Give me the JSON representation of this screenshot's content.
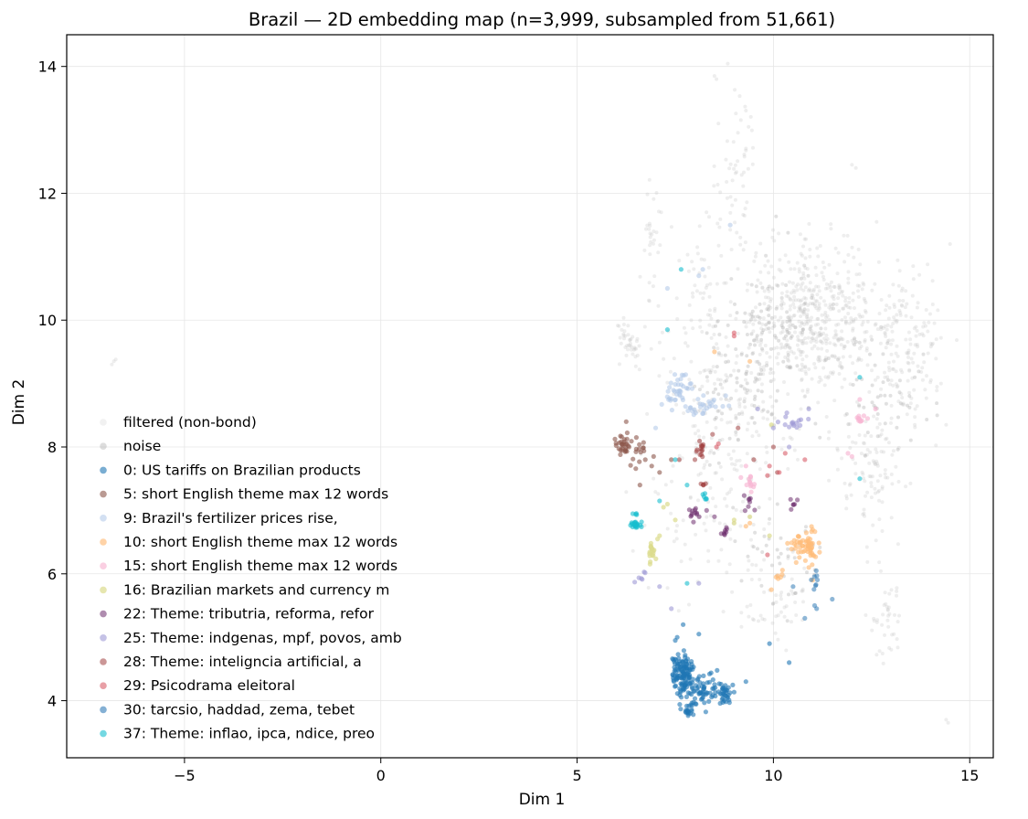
{
  "chart_data": {
    "type": "scatter",
    "title": "Brazil — 2D embedding map (n=3,999, subsampled from 51,661)",
    "xlabel": "Dim 1",
    "ylabel": "Dim 2",
    "xlim": [
      -8.0,
      15.6
    ],
    "ylim": [
      3.1,
      14.5
    ],
    "xticks": [
      -5,
      0,
      5,
      10,
      15
    ],
    "xtick_labels": [
      "−5",
      "0",
      "5",
      "10",
      "15"
    ],
    "yticks": [
      4,
      6,
      8,
      10,
      12,
      14
    ],
    "ytick_labels": [
      "4",
      "6",
      "8",
      "10",
      "12",
      "14"
    ],
    "grid": true,
    "legend_position": "lower-left",
    "series": [
      {
        "name": "filtered (non-bond)",
        "color": "#c8c8c8",
        "opacity": 0.3,
        "clusters": [
          [
            11,
            10.0,
            1.6,
            1.1,
            520
          ],
          [
            8.6,
            8.3,
            1.6,
            2.3,
            260
          ],
          [
            6.3,
            9.6,
            0.35,
            0.35,
            40
          ],
          [
            6.9,
            11.3,
            0.2,
            1.0,
            30
          ],
          [
            13.4,
            9.6,
            0.8,
            1.2,
            150
          ],
          [
            12.6,
            7.5,
            0.8,
            0.9,
            100
          ],
          [
            9.1,
            12.2,
            0.5,
            1.4,
            60
          ],
          [
            10.0,
            5.6,
            1.0,
            0.6,
            50
          ],
          [
            12.8,
            5.4,
            0.4,
            0.6,
            40
          ],
          [
            8.2,
            10.5,
            0.5,
            1.0,
            40
          ]
        ],
        "points": [
          [
            -6.85,
            9.3
          ],
          [
            -6.8,
            9.35
          ],
          [
            -6.75,
            9.38
          ],
          [
            14.4,
            3.7
          ],
          [
            14.45,
            3.65
          ],
          [
            14.5,
            11.2
          ],
          [
            14.4,
            8.35
          ],
          [
            12.0,
            12.45
          ],
          [
            12.1,
            12.4
          ],
          [
            8.5,
            13.85
          ],
          [
            8.55,
            13.8
          ],
          [
            8.6,
            13.1
          ]
        ]
      },
      {
        "name": "noise",
        "color": "#a9a9a9",
        "opacity": 0.35,
        "clusters": [
          [
            10.2,
            9.8,
            1.4,
            1.0,
            110
          ],
          [
            8.9,
            9.0,
            0.9,
            1.0,
            60
          ],
          [
            12.7,
            8.9,
            1.0,
            1.0,
            50
          ],
          [
            10.0,
            6.3,
            1.0,
            0.6,
            40
          ]
        ],
        "points": []
      },
      {
        "name": "0: US tariffs on Brazilian products",
        "color": "#1f77b4",
        "opacity": 0.6,
        "clusters": [
          [
            7.7,
            4.4,
            0.28,
            0.3,
            130
          ],
          [
            8.3,
            4.15,
            0.38,
            0.18,
            60
          ],
          [
            7.85,
            3.85,
            0.22,
            0.08,
            20
          ],
          [
            8.8,
            4.1,
            0.2,
            0.12,
            25
          ]
        ],
        "points": [
          [
            7.5,
            4.95
          ],
          [
            7.55,
            5.0
          ],
          [
            8.1,
            5.05
          ],
          [
            9.3,
            4.3
          ],
          [
            9.9,
            4.9
          ],
          [
            10.4,
            4.6
          ],
          [
            7.7,
            5.2
          ],
          [
            7.45,
            4.65
          ]
        ]
      },
      {
        "name": "5: short English theme max 12 words",
        "color": "#8c564b",
        "opacity": 0.6,
        "clusters": [
          [
            6.2,
            8.05,
            0.18,
            0.12,
            30
          ],
          [
            6.6,
            7.9,
            0.2,
            0.18,
            15
          ]
        ],
        "points": [
          [
            6.9,
            7.7
          ],
          [
            7.1,
            7.6
          ],
          [
            6.6,
            7.4
          ],
          [
            7.4,
            7.8
          ],
          [
            6.95,
            7.85
          ],
          [
            6.25,
            8.4
          ]
        ]
      },
      {
        "name": "9: Brazil's fertilizer prices rise,",
        "color": "#aec7e8",
        "opacity": 0.55,
        "clusters": [
          [
            7.5,
            8.85,
            0.4,
            0.25,
            40
          ],
          [
            8.3,
            8.65,
            0.5,
            0.2,
            25
          ]
        ],
        "points": [
          [
            8.9,
            11.5
          ],
          [
            8.1,
            10.7
          ],
          [
            7.3,
            10.5
          ],
          [
            8.2,
            10.8
          ],
          [
            7.9,
            9.0
          ],
          [
            7.0,
            8.3
          ]
        ]
      },
      {
        "name": "10: short English theme max 12 words",
        "color": "#ffbb78",
        "opacity": 0.65,
        "clusters": [
          [
            10.9,
            6.4,
            0.3,
            0.22,
            45
          ],
          [
            10.6,
            6.5,
            0.25,
            0.1,
            15
          ],
          [
            10.15,
            6.0,
            0.1,
            0.1,
            6
          ]
        ],
        "points": [
          [
            9.95,
            5.75
          ],
          [
            9.4,
            6.8
          ],
          [
            9.3,
            6.75
          ],
          [
            8.5,
            9.5
          ],
          [
            9.4,
            9.35
          ],
          [
            10.9,
            6.1
          ],
          [
            11.0,
            5.9
          ]
        ]
      },
      {
        "name": "15: short English theme max 12 words",
        "color": "#f7b6d2",
        "opacity": 0.65,
        "clusters": [
          [
            12.2,
            8.45,
            0.1,
            0.06,
            10
          ],
          [
            9.4,
            7.45,
            0.15,
            0.12,
            12
          ]
        ],
        "points": [
          [
            12.4,
            8.45
          ],
          [
            12.6,
            8.6
          ],
          [
            11.9,
            7.9
          ],
          [
            12.0,
            7.85
          ],
          [
            12.2,
            8.75
          ],
          [
            9.3,
            7.7
          ]
        ]
      },
      {
        "name": "16: Brazilian markets and currency m",
        "color": "#dbdb8d",
        "opacity": 0.7,
        "clusters": [
          [
            6.9,
            6.3,
            0.08,
            0.15,
            18
          ]
        ],
        "points": [
          [
            7.1,
            6.6
          ],
          [
            7.05,
            6.55
          ],
          [
            7.2,
            7.05
          ],
          [
            7.5,
            6.85
          ],
          [
            9.4,
            6.9
          ],
          [
            9.0,
            6.85
          ],
          [
            9.0,
            6.8
          ],
          [
            7.3,
            7.1
          ],
          [
            9.9,
            6.6
          ],
          [
            9.95,
            8.35
          ]
        ]
      },
      {
        "name": "22: Theme: tributria, reforma, refor",
        "color": "#6e2d6e",
        "opacity": 0.55,
        "clusters": [
          [
            8.0,
            6.95,
            0.18,
            0.14,
            12
          ],
          [
            9.4,
            7.1,
            0.15,
            0.12,
            8
          ],
          [
            10.5,
            7.1,
            0.1,
            0.15,
            6
          ],
          [
            8.8,
            6.65,
            0.08,
            0.08,
            8
          ]
        ],
        "points": [
          [
            8.3,
            7.0
          ],
          [
            8.5,
            6.9
          ]
        ]
      },
      {
        "name": "25: Theme: indgenas, mpf, povos, amb",
        "color": "#9e9ad6",
        "opacity": 0.6,
        "clusters": [
          [
            10.5,
            8.4,
            0.35,
            0.15,
            15
          ],
          [
            6.6,
            5.95,
            0.12,
            0.06,
            6
          ]
        ],
        "points": [
          [
            7.1,
            5.8
          ],
          [
            7.4,
            5.45
          ],
          [
            8.1,
            5.85
          ],
          [
            9.6,
            8.6
          ],
          [
            10.0,
            8.3
          ],
          [
            10.9,
            8.6
          ],
          [
            10.4,
            8.0
          ]
        ]
      },
      {
        "name": "28: Theme: inteligncia artificial, a",
        "color": "#a0403f",
        "opacity": 0.55,
        "clusters": [
          [
            8.15,
            8.0,
            0.12,
            0.12,
            14
          ],
          [
            8.2,
            7.4,
            0.08,
            0.06,
            5
          ]
        ],
        "points": [
          [
            8.0,
            7.8
          ],
          [
            7.6,
            7.8
          ],
          [
            8.45,
            8.2
          ],
          [
            9.1,
            8.3
          ],
          [
            9.5,
            7.8
          ],
          [
            10.1,
            7.6
          ],
          [
            10.0,
            8.0
          ]
        ]
      },
      {
        "name": "29: Psicodrama eleitoral",
        "color": "#d95f6b",
        "opacity": 0.6,
        "clusters": [],
        "points": [
          [
            9.0,
            9.8
          ],
          [
            9.0,
            9.75
          ],
          [
            9.9,
            7.7
          ],
          [
            9.85,
            7.55
          ],
          [
            10.15,
            7.6
          ],
          [
            10.3,
            7.9
          ],
          [
            10.8,
            7.8
          ],
          [
            9.85,
            6.3
          ],
          [
            8.6,
            8.05
          ],
          [
            8.55,
            8.0
          ]
        ]
      },
      {
        "name": "30: tarcsio, haddad, zema, tebet",
        "color": "#1f6fb0",
        "opacity": 0.5,
        "clusters": [
          [
            10.95,
            5.9,
            0.15,
            0.25,
            8
          ]
        ],
        "points": [
          [
            10.8,
            5.3
          ],
          [
            11.1,
            5.45
          ],
          [
            11.05,
            5.5
          ],
          [
            11.5,
            5.6
          ],
          [
            10.5,
            5.8
          ]
        ]
      },
      {
        "name": "37: Theme: inflao, ipca, ndice, preo",
        "color": "#17becf",
        "opacity": 0.6,
        "clusters": [
          [
            6.5,
            6.78,
            0.12,
            0.05,
            25
          ],
          [
            8.25,
            7.2,
            0.05,
            0.08,
            6
          ],
          [
            6.45,
            6.95,
            0.08,
            0.05,
            4
          ]
        ],
        "points": [
          [
            7.3,
            9.85
          ],
          [
            7.5,
            7.8
          ],
          [
            7.8,
            5.85
          ],
          [
            7.8,
            7.4
          ],
          [
            12.2,
            7.5
          ],
          [
            12.2,
            9.1
          ],
          [
            7.1,
            7.15
          ],
          [
            7.65,
            10.8
          ]
        ]
      }
    ]
  }
}
